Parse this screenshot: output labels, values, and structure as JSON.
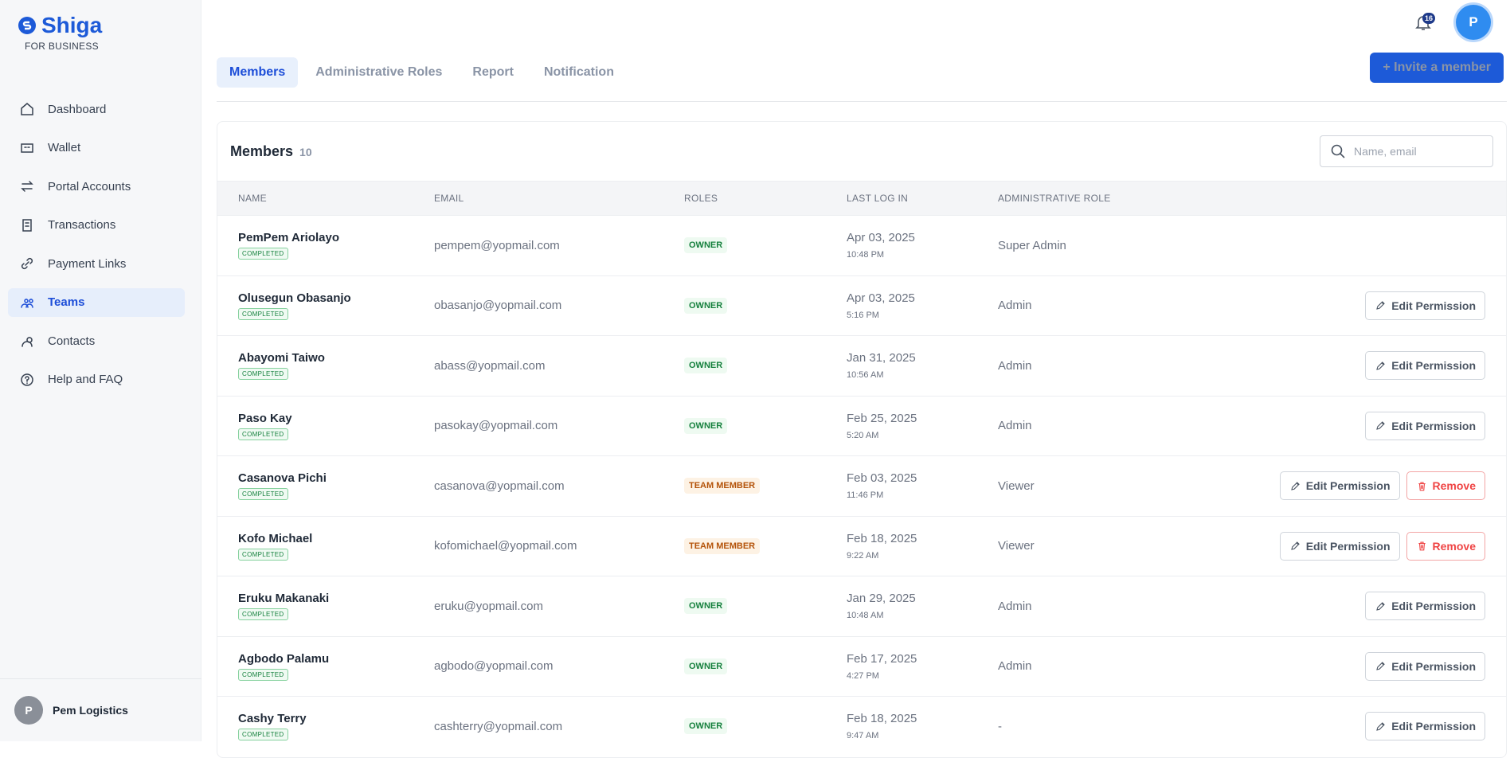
{
  "brand": {
    "name": "Shiga",
    "tagline": "FOR BUSINESS"
  },
  "nav": [
    "Dashboard",
    "Wallet",
    "Portal Accounts",
    "Transactions",
    "Payment Links",
    "Teams",
    "Contacts",
    "Help and FAQ"
  ],
  "active_nav": 5,
  "account": {
    "initial": "P",
    "name": "Pem Logistics"
  },
  "topbar": {
    "notifications": "16",
    "avatar": "P"
  },
  "tabs": [
    "Members",
    "Administrative Roles",
    "Report",
    "Notification"
  ],
  "active_tab": 0,
  "invite_button": "+ Invite a member",
  "members": {
    "title": "Members",
    "count": "10",
    "search_placeholder": "Name, email",
    "columns": [
      "NAME",
      "EMAIL",
      "ROLES",
      "LAST LOG IN",
      "ADMINISTRATIVE ROLE"
    ],
    "rows": [
      {
        "name": "PemPem Ariolayo",
        "status": "COMPLETED",
        "email": "pempem@yopmail.com",
        "role": "OWNER",
        "date": "Apr 03, 2025",
        "time": "10:48 PM",
        "admin_role": "Super Admin",
        "actions": []
      },
      {
        "name": "Olusegun Obasanjo",
        "status": "COMPLETED",
        "email": "obasanjo@yopmail.com",
        "role": "OWNER",
        "date": "Apr 03, 2025",
        "time": "5:16 PM",
        "admin_role": "Admin",
        "actions": [
          "Edit Permission"
        ]
      },
      {
        "name": "Abayomi Taiwo",
        "status": "COMPLETED",
        "email": "abass@yopmail.com",
        "role": "OWNER",
        "date": "Jan 31, 2025",
        "time": "10:56 AM",
        "admin_role": "Admin",
        "actions": [
          "Edit Permission"
        ]
      },
      {
        "name": "Paso Kay",
        "status": "COMPLETED",
        "email": "pasokay@yopmail.com",
        "role": "OWNER",
        "date": "Feb 25, 2025",
        "time": "5:20 AM",
        "admin_role": "Admin",
        "actions": [
          "Edit Permission"
        ]
      },
      {
        "name": "Casanova Pichi",
        "status": "COMPLETED",
        "email": "casanova@yopmail.com",
        "role": "TEAM MEMBER",
        "date": "Feb 03, 2025",
        "time": "11:46 PM",
        "admin_role": "Viewer",
        "actions": [
          "Edit Permission",
          "Remove"
        ]
      },
      {
        "name": "Kofo Michael",
        "status": "COMPLETED",
        "email": "kofomichael@yopmail.com",
        "role": "TEAM MEMBER",
        "date": "Feb 18, 2025",
        "time": "9:22 AM",
        "admin_role": "Viewer",
        "actions": [
          "Edit Permission",
          "Remove"
        ]
      },
      {
        "name": "Eruku Makanaki",
        "status": "COMPLETED",
        "email": "eruku@yopmail.com",
        "role": "OWNER",
        "date": "Jan 29, 2025",
        "time": "10:48 AM",
        "admin_role": "Admin",
        "actions": [
          "Edit Permission"
        ]
      },
      {
        "name": "Agbodo Palamu",
        "status": "COMPLETED",
        "email": "agbodo@yopmail.com",
        "role": "OWNER",
        "date": "Feb 17, 2025",
        "time": "4:27 PM",
        "admin_role": "Admin",
        "actions": [
          "Edit Permission"
        ]
      },
      {
        "name": "Cashy Terry",
        "status": "COMPLETED",
        "email": "cashterry@yopmail.com",
        "role": "OWNER",
        "date": "Feb 18, 2025",
        "time": "9:47 AM",
        "admin_role": "-",
        "actions": [
          "Edit Permission"
        ]
      }
    ]
  }
}
